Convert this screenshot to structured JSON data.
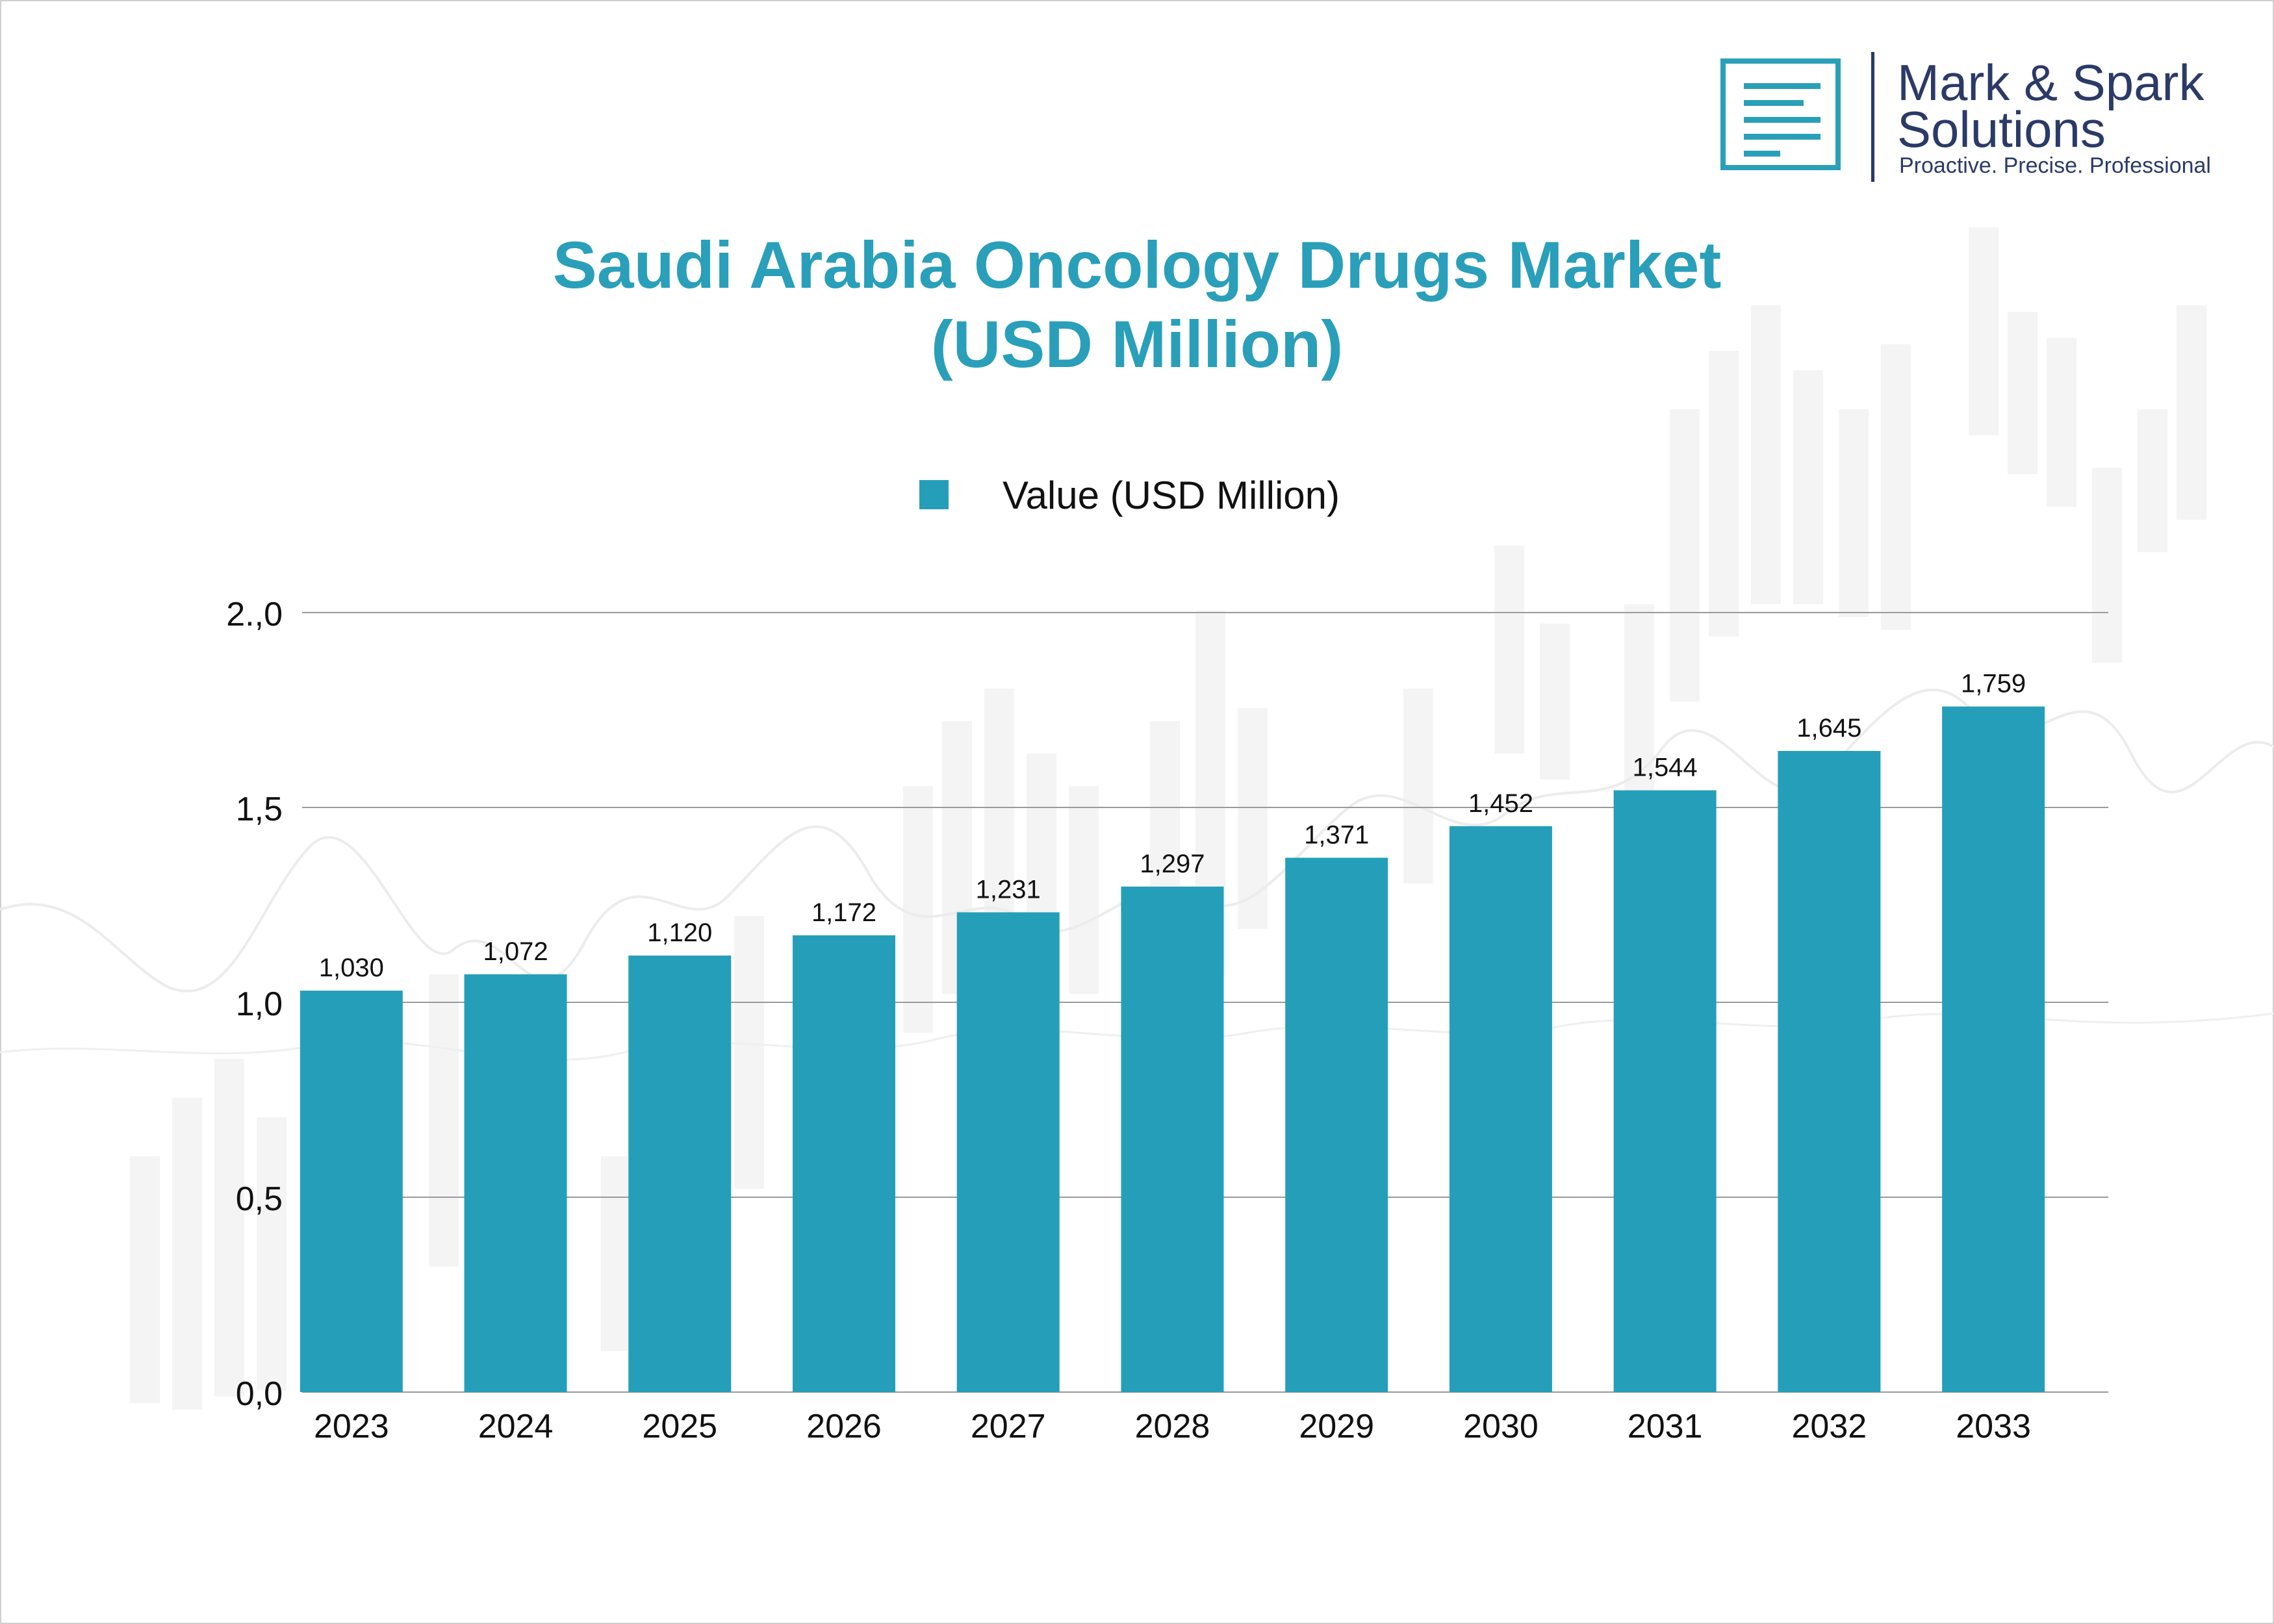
{
  "brand": {
    "name_line1": "Mark & Spark",
    "name_line2": "Solutions",
    "tagline": "Proactive. Precise. Professional"
  },
  "colors": {
    "bar": "#259fb9",
    "title": "#2a9fb9",
    "brand": "#2b3a67",
    "grid": "#9a9a9a"
  },
  "chart_data": {
    "type": "bar",
    "title": "Saudi Arabia Oncology Drugs Market",
    "subtitle": "(USD Million)",
    "xlabel": "",
    "ylabel": "",
    "legend_position": "top-center",
    "grid": true,
    "categories": [
      "2023",
      "2024",
      "2025",
      "2026",
      "2027",
      "2028",
      "2029",
      "2030",
      "2031",
      "2032",
      "2033"
    ],
    "series": [
      {
        "name": "Value (USD Million)",
        "values": [
          1.03,
          1.072,
          1.12,
          1.172,
          1.231,
          1.297,
          1.371,
          1.452,
          1.544,
          1.645,
          1.759
        ],
        "labels": [
          "1,030",
          "1,072",
          "1,120",
          "1,172",
          "1,231",
          "1,297",
          "1,371",
          "1,452",
          "1,544",
          "1,645",
          "1,759"
        ]
      }
    ],
    "ylim": [
      0,
      2.0
    ],
    "y_ticks": [
      0,
      0.5,
      1.0,
      1.5,
      2.0
    ],
    "y_tick_labels": [
      "0,0",
      "0,5",
      "1,0",
      "1,5",
      "2.,0"
    ]
  }
}
